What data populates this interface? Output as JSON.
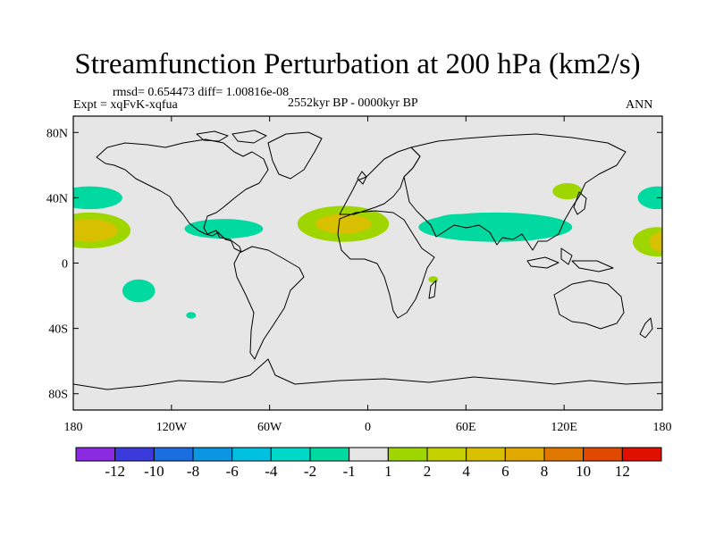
{
  "header": {
    "title": "Streamfunction Perturbation at 200 hPa (km2/s)",
    "stats": "rmsd= 0.654473 diff= 1.00816e-08",
    "expt": "Expt = xqFvK-xqfua",
    "period": "2552kyr BP - 0000kyr BP",
    "season": "ANN"
  },
  "map": {
    "lat_ticks": [
      {
        "value": 80,
        "label": "80N"
      },
      {
        "value": 40,
        "label": "40N"
      },
      {
        "value": 0,
        "label": "0"
      },
      {
        "value": -40,
        "label": "40S"
      },
      {
        "value": -80,
        "label": "80S"
      }
    ],
    "lon_ticks": [
      {
        "value": -180,
        "label": "180"
      },
      {
        "value": -120,
        "label": "120W"
      },
      {
        "value": -60,
        "label": "60W"
      },
      {
        "value": 0,
        "label": "0"
      },
      {
        "value": 60,
        "label": "60E"
      },
      {
        "value": 120,
        "label": "120E"
      },
      {
        "value": 180,
        "label": "180"
      }
    ],
    "colors": {
      "ocean_land_bg": "#e6e6e6",
      "neg_weak": "#00d9a0",
      "pos_weak": "#a0d600",
      "pos_mid": "#d8c000"
    },
    "anomalies": [
      {
        "name": "north-pacific-negative-west",
        "lon": -170,
        "lat": 40,
        "rlon": 20,
        "rlat": 7,
        "level": "neg_weak"
      },
      {
        "name": "pacific-positive-west",
        "lon": -170,
        "lat": 20,
        "rlon": 25,
        "rlat": 11,
        "level": "pos_weak"
      },
      {
        "name": "pacific-positive-core",
        "lon": -170,
        "lat": 20,
        "rlon": 17,
        "rlat": 7,
        "level": "pos_mid"
      },
      {
        "name": "caribbean-negative",
        "lon": -88,
        "lat": 21,
        "rlon": 24,
        "rlat": 6,
        "level": "neg_weak"
      },
      {
        "name": "south-pacific-negative",
        "lon": -140,
        "lat": -17,
        "rlon": 10,
        "rlat": 7,
        "level": "neg_weak"
      },
      {
        "name": "south-pacific-small-negative",
        "lon": -108,
        "lat": -32,
        "rlon": 3,
        "rlat": 2,
        "level": "neg_weak"
      },
      {
        "name": "sahara-positive",
        "lon": -15,
        "lat": 24,
        "rlon": 28,
        "rlat": 11,
        "level": "pos_weak"
      },
      {
        "name": "sahara-positive-core",
        "lon": -15,
        "lat": 24,
        "rlon": 17,
        "rlat": 6,
        "level": "pos_mid"
      },
      {
        "name": "east-africa-small-positive",
        "lon": 40,
        "lat": -10,
        "rlon": 3,
        "rlat": 2,
        "level": "pos_weak"
      },
      {
        "name": "asia-negative-band",
        "lon": 78,
        "lat": 22,
        "rlon": 47,
        "rlat": 9,
        "level": "neg_weak"
      },
      {
        "name": "asia-negative-west",
        "lon": 55,
        "lat": 24,
        "rlon": 16,
        "rlat": 6,
        "level": "neg_weak"
      },
      {
        "name": "east-asia-positive",
        "lon": 122,
        "lat": 44,
        "rlon": 9,
        "rlat": 5,
        "level": "pos_weak"
      },
      {
        "name": "west-pacific-negative",
        "lon": 177,
        "lat": 40,
        "rlon": 12,
        "rlat": 7,
        "level": "neg_weak"
      },
      {
        "name": "west-pacific-positive",
        "lon": 177,
        "lat": 13,
        "rlon": 15,
        "rlat": 9,
        "level": "pos_weak"
      },
      {
        "name": "west-pacific-positive-core",
        "lon": 180,
        "lat": 13,
        "rlon": 8,
        "rlat": 6,
        "level": "pos_mid"
      }
    ]
  },
  "colorbar": {
    "levels": [
      "-12",
      "-10",
      "-8",
      "-6",
      "-4",
      "-2",
      "-1",
      "1",
      "2",
      "4",
      "6",
      "8",
      "10",
      "12"
    ],
    "colors": [
      "#8a2be2",
      "#3b3bdc",
      "#1c6ee0",
      "#0a96e0",
      "#00c0e0",
      "#00d9c8",
      "#00d9a0",
      "#e6e6e6",
      "#a0d600",
      "#c4d000",
      "#d8c000",
      "#e0a800",
      "#e07800",
      "#e04a00",
      "#e01000"
    ]
  }
}
